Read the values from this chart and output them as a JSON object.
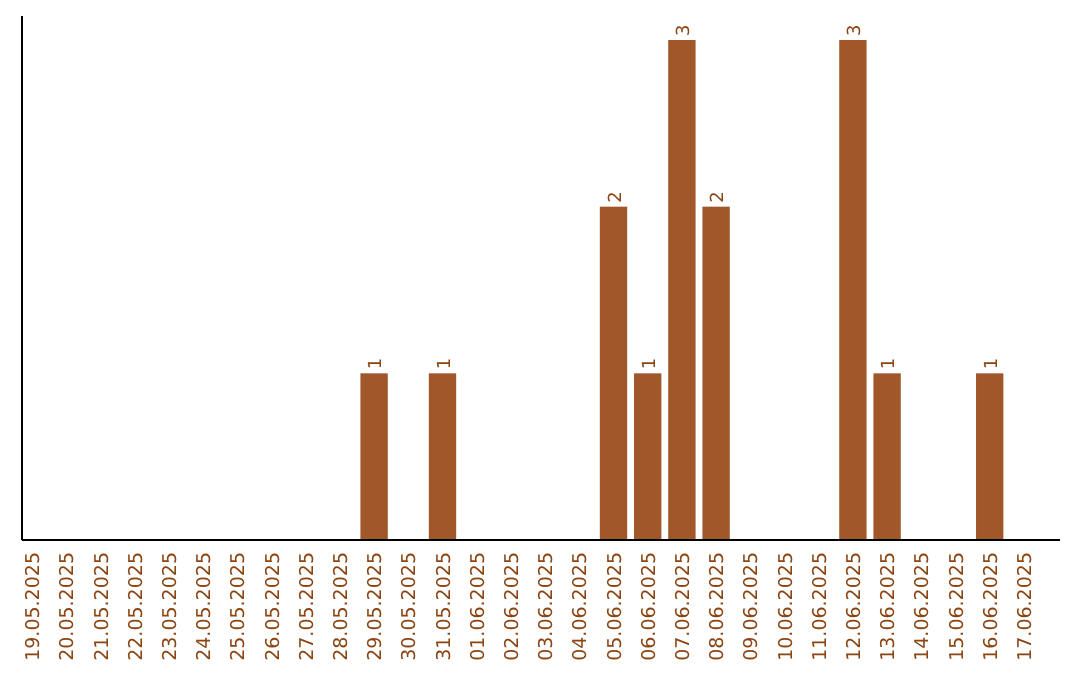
{
  "chart_data": {
    "type": "bar",
    "categories": [
      "19.05.2025",
      "20.05.2025",
      "21.05.2025",
      "22.05.2025",
      "23.05.2025",
      "24.05.2025",
      "25.05.2025",
      "26.05.2025",
      "27.05.2025",
      "28.05.2025",
      "29.05.2025",
      "30.05.2025",
      "31.05.2025",
      "01.06.2025",
      "02.06.2025",
      "03.06.2025",
      "04.06.2025",
      "05.06.2025",
      "06.06.2025",
      "07.06.2025",
      "08.06.2025",
      "09.06.2025",
      "10.06.2025",
      "11.06.2025",
      "12.06.2025",
      "13.06.2025",
      "14.06.2025",
      "15.06.2025",
      "16.06.2025",
      "17.06.2025"
    ],
    "values": [
      0,
      0,
      0,
      0,
      0,
      0,
      0,
      0,
      0,
      0,
      1,
      0,
      1,
      0,
      0,
      0,
      0,
      2,
      1,
      3,
      2,
      0,
      0,
      0,
      3,
      1,
      0,
      0,
      1,
      0
    ],
    "value_labels": [
      null,
      null,
      null,
      null,
      null,
      null,
      null,
      null,
      null,
      null,
      "1",
      null,
      "1",
      null,
      null,
      null,
      null,
      "2",
      "1",
      "3",
      "2",
      null,
      null,
      null,
      "3",
      "1",
      null,
      null,
      "1",
      null
    ],
    "color": "#a0572a"
  }
}
